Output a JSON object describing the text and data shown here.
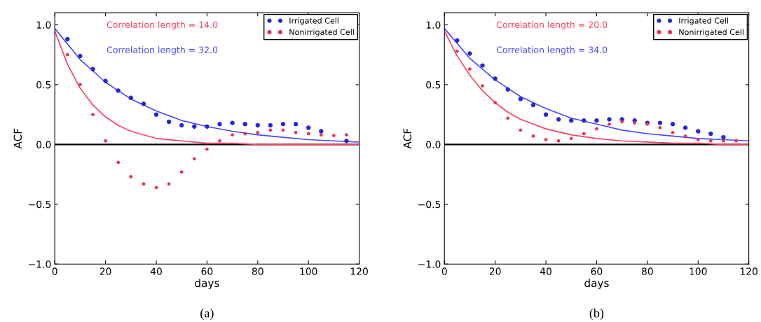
{
  "chart_data": [
    {
      "type": "scatter",
      "xlabel": "days",
      "ylabel": "ACF",
      "annotations": [
        "Correlation length = 14.0",
        "Correlation length = 32.0",
        "(a)"
      ],
      "xlim": [
        0,
        120
      ],
      "ylim": [
        -1,
        1.1
      ],
      "xticks": [
        0,
        20,
        40,
        60,
        80,
        100,
        120
      ],
      "yticks": [
        {
          "value": -1,
          "label": "−1.0"
        },
        {
          "value": -0.5,
          "label": "−0.5"
        },
        {
          "value": 0,
          "label": "0.0"
        },
        {
          "value": 0.5,
          "label": "0.5"
        },
        {
          "value": 1,
          "label": "1.0"
        }
      ],
      "legend": "top right",
      "marker": "circle",
      "grid": false,
      "ref_lines": [
        {
          "axis": "y",
          "value": 0,
          "color": "#000000"
        }
      ],
      "series": [
        {
          "name": "Irrigated Cell",
          "color": "#2626d9",
          "x": [
            5,
            10,
            15,
            20,
            25,
            30,
            35,
            40,
            45,
            50,
            55,
            60,
            65,
            70,
            75,
            80,
            85,
            90,
            95,
            100,
            105,
            110,
            115
          ],
          "values": [
            0.88,
            0.74,
            0.63,
            0.53,
            0.45,
            0.39,
            0.34,
            0.25,
            0.19,
            0.16,
            0.15,
            0.15,
            0.17,
            0.18,
            0.17,
            0.16,
            0.16,
            0.17,
            0.17,
            0.14,
            0.11,
            null,
            0.03
          ]
        },
        {
          "name": "Nonirrigated Cell",
          "color": "#e8324f",
          "x": [
            5,
            10,
            15,
            20,
            25,
            30,
            35,
            40,
            45,
            50,
            55,
            60,
            65,
            70,
            75,
            80,
            85,
            90,
            95,
            100,
            105,
            110,
            115
          ],
          "values": [
            0.75,
            0.5,
            0.25,
            0.03,
            -0.15,
            -0.27,
            -0.33,
            -0.36,
            -0.33,
            -0.23,
            -0.12,
            -0.04,
            0.03,
            0.08,
            0.09,
            0.1,
            0.12,
            0.12,
            0.1,
            0.09,
            0.08,
            0.075,
            0.08
          ]
        },
        {
          "type": "line",
          "marker": "none",
          "color": "#ff4060",
          "x": [
            0,
            5,
            10,
            15,
            20,
            25,
            30,
            40,
            50,
            60,
            70,
            80,
            90,
            100,
            110,
            120
          ],
          "values": [
            0.95,
            0.67,
            0.47,
            0.33,
            0.23,
            0.16,
            0.11,
            0.05,
            0.03,
            0.01,
            0.01,
            0.0,
            0.0,
            0.0,
            0.0,
            0.0
          ]
        },
        {
          "type": "line",
          "marker": "none",
          "color": "#4848ff",
          "x": [
            0,
            10,
            20,
            30,
            40,
            50,
            60,
            70,
            80,
            90,
            100,
            110,
            120
          ],
          "values": [
            0.97,
            0.71,
            0.52,
            0.38,
            0.28,
            0.2,
            0.15,
            0.11,
            0.08,
            0.06,
            0.04,
            0.03,
            0.02
          ]
        }
      ]
    },
    {
      "type": "scatter",
      "xlabel": "days",
      "ylabel": "ACF",
      "annotations": [
        "Correlation length = 20.0",
        "Correlation length = 34.0",
        "(b)"
      ],
      "xlim": [
        0,
        120
      ],
      "ylim": [
        -1,
        1.1
      ],
      "xticks": [
        0,
        20,
        40,
        60,
        80,
        100,
        120
      ],
      "yticks": [
        {
          "value": -1,
          "label": "−1.0"
        },
        {
          "value": -0.5,
          "label": "−0.5"
        },
        {
          "value": 0,
          "label": "0.0"
        },
        {
          "value": 0.5,
          "label": "0.5"
        },
        {
          "value": 1,
          "label": "1.0"
        }
      ],
      "legend": "top right",
      "marker": "circle",
      "grid": false,
      "ref_lines": [
        {
          "axis": "y",
          "value": 0,
          "color": "#000000"
        }
      ],
      "series": [
        {
          "name": "Irrigated Cell",
          "color": "#2626d9",
          "x": [
            5,
            10,
            15,
            20,
            25,
            30,
            35,
            40,
            45,
            50,
            55,
            60,
            65,
            70,
            75,
            80,
            85,
            90,
            95,
            100,
            105,
            110
          ],
          "values": [
            0.87,
            0.76,
            0.66,
            0.55,
            0.46,
            0.38,
            0.33,
            0.25,
            0.21,
            0.2,
            0.2,
            0.2,
            0.21,
            0.21,
            0.2,
            0.18,
            0.18,
            0.17,
            0.14,
            0.11,
            0.09,
            0.06
          ]
        },
        {
          "name": "Nonirrigated Cell",
          "color": "#e8324f",
          "x": [
            5,
            10,
            15,
            20,
            25,
            30,
            35,
            40,
            45,
            50,
            55,
            60,
            65,
            70,
            75,
            80,
            85,
            90,
            95,
            100,
            105,
            110,
            115
          ],
          "values": [
            0.78,
            0.63,
            0.49,
            0.35,
            0.22,
            0.12,
            0.07,
            0.04,
            0.03,
            0.05,
            0.09,
            0.13,
            0.17,
            0.19,
            0.18,
            0.17,
            0.14,
            0.1,
            0.07,
            0.04,
            0.03,
            0.03,
            0.03
          ]
        },
        {
          "type": "line",
          "marker": "none",
          "color": "#ff4060",
          "x": [
            0,
            5,
            10,
            15,
            20,
            25,
            30,
            40,
            50,
            60,
            70,
            80,
            90,
            100,
            110,
            120
          ],
          "values": [
            0.95,
            0.74,
            0.58,
            0.45,
            0.35,
            0.27,
            0.21,
            0.13,
            0.08,
            0.05,
            0.03,
            0.02,
            0.01,
            0.01,
            0.0,
            0.0
          ]
        },
        {
          "type": "line",
          "marker": "none",
          "color": "#4848ff",
          "x": [
            0,
            10,
            20,
            30,
            40,
            50,
            60,
            70,
            80,
            90,
            100,
            110,
            120
          ],
          "values": [
            0.97,
            0.72,
            0.54,
            0.4,
            0.3,
            0.22,
            0.17,
            0.12,
            0.09,
            0.07,
            0.05,
            0.04,
            0.03
          ]
        }
      ]
    }
  ]
}
